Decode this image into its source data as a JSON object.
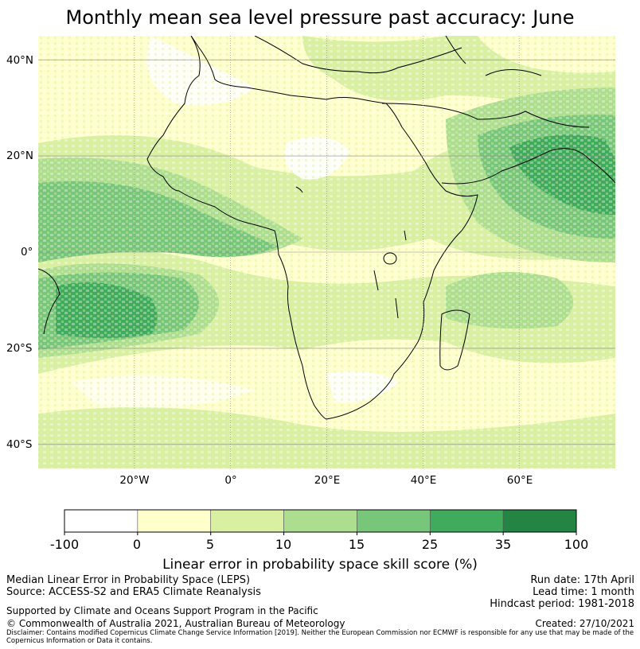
{
  "title": "Monthly mean sea level pressure past accuracy: June",
  "map": {
    "lat_labels": [
      "40°N",
      "20°N",
      "0°",
      "20°S",
      "40°S"
    ],
    "lon_labels": [
      "20°W",
      "0°",
      "20°E",
      "40°E",
      "60°E"
    ],
    "lat_values": [
      40,
      20,
      0,
      -20,
      -40
    ],
    "lon_values": [
      -20,
      0,
      20,
      40,
      60
    ],
    "extent": {
      "lon": [
        -40,
        80
      ],
      "lat": [
        -45,
        45
      ]
    },
    "regions": [
      {
        "name": "Sahara",
        "level": "5-10"
      },
      {
        "name": "Equatorial Atlantic",
        "level": "15-25"
      },
      {
        "name": "South Atlantic (off Angola)",
        "level": "25-35"
      },
      {
        "name": "Arabian Sea / India",
        "level": "25-35"
      },
      {
        "name": "Southern Africa",
        "level": "0-5"
      }
    ]
  },
  "colorbar": {
    "boundaries": [
      "-100",
      "0",
      "5",
      "10",
      "15",
      "25",
      "35",
      "100"
    ],
    "colors": [
      "#ffffff",
      "#ffffcc",
      "#d9f0a3",
      "#addd8e",
      "#78c679",
      "#41ab5d",
      "#238443"
    ],
    "label": "Linear error in probability space skill score (%)"
  },
  "footer": {
    "line1": "Median Linear Error in Probability Space (LEPS)",
    "line2": "Source: ACCESS-S2 and ERA5 Climate Reanalysis",
    "run_date": "Run date: 17th April",
    "lead_time": "Lead time: 1 month",
    "hindcast": "Hindcast period: 1981-2018",
    "support": "Supported by Climate and Oceans Support Program in the Pacific",
    "copyright": "© Commonwealth of Australia 2021, Australian Bureau of Meteorology",
    "created": "Created: 27/10/2021",
    "disclaimer": "Disclaimer: Contains modified Copernicus Climate Change Service Information [2019]. Neither the European Commission nor ECMWF is responsible for any use that may be made of the Copernicus Information or Data it contains."
  }
}
